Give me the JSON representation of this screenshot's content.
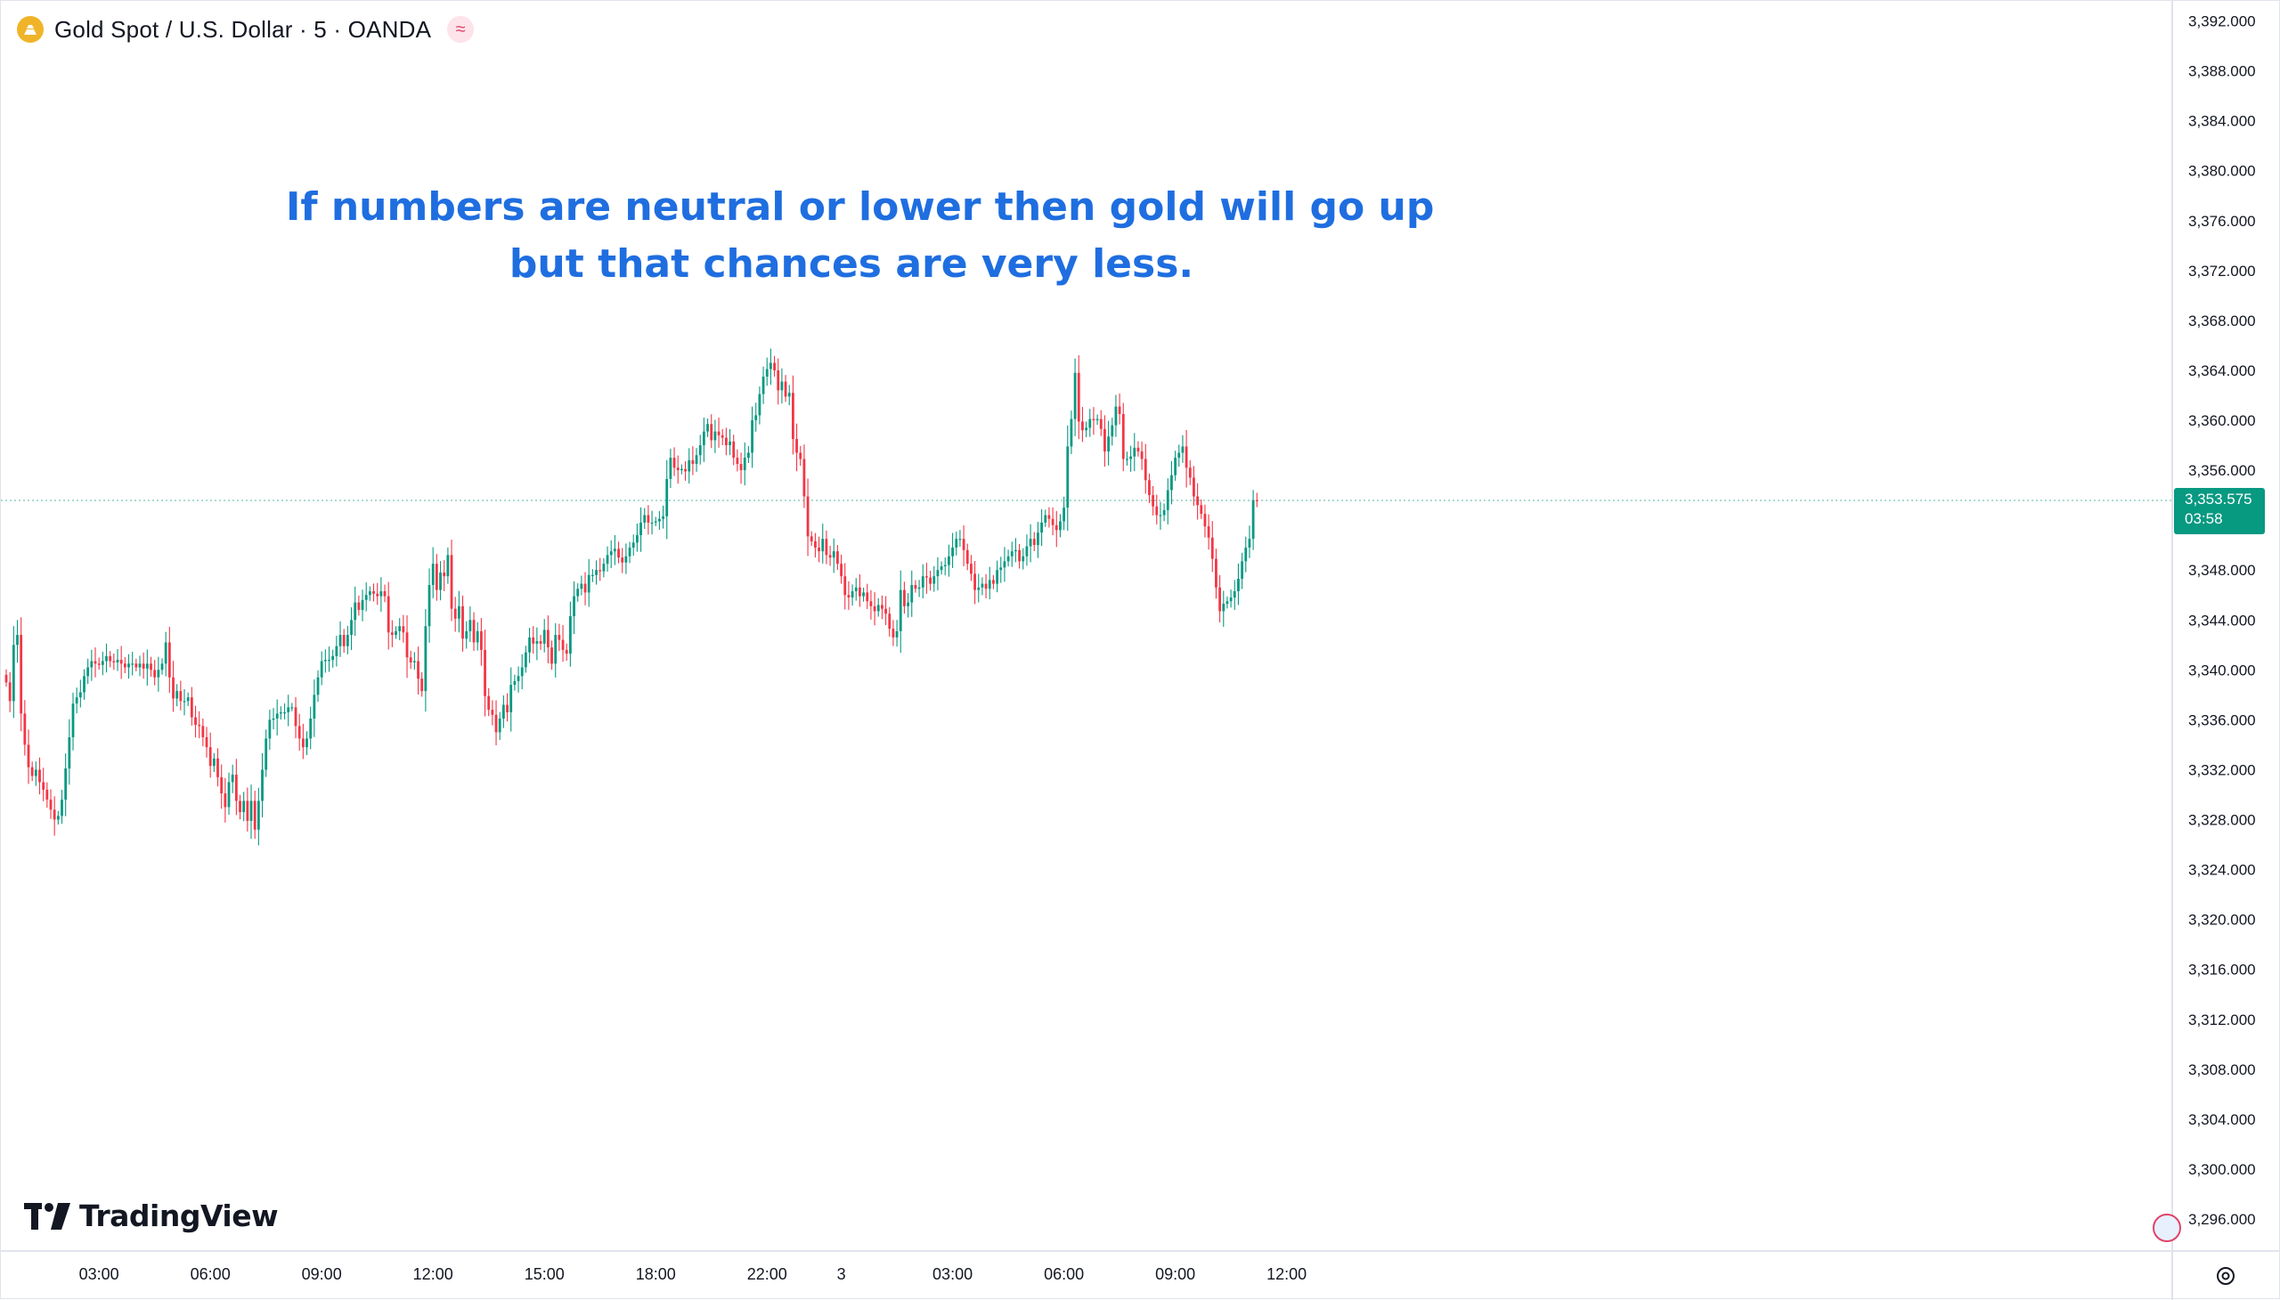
{
  "header": {
    "title": "Gold Spot / U.S. Dollar · 5 · OANDA",
    "symbol_icon": "gold-coin-icon",
    "indicator_icon": "approx-icon",
    "indicator_glyph": "≈"
  },
  "annotation": {
    "line1": "If numbers are neutral or lower then gold will go up",
    "line2": "but that chances are very less.",
    "color": "#1f6ee0"
  },
  "logo": {
    "text": "TradingView"
  },
  "price_label": {
    "price": "3,353.575",
    "countdown": "03:58",
    "color": "#089981"
  },
  "colors": {
    "up": "#089981",
    "down": "#f23645",
    "grid_line": "#e0e3eb",
    "price_line": "#089981"
  },
  "chart_data": {
    "type": "candlestick",
    "title": "Gold Spot / U.S. Dollar · 5 · OANDA",
    "interval": "5",
    "ylim": [
      3292,
      3394
    ],
    "y_ticks": [
      "3,392.000",
      "3,388.000",
      "3,384.000",
      "3,380.000",
      "3,376.000",
      "3,372.000",
      "3,368.000",
      "3,364.000",
      "3,360.000",
      "3,356.000",
      "3,352.000",
      "3,348.000",
      "3,344.000",
      "3,340.000",
      "3,336.000",
      "3,332.000",
      "3,328.000",
      "3,324.000",
      "3,320.000",
      "3,316.000",
      "3,312.000",
      "3,308.000",
      "3,304.000",
      "3,300.000",
      "3,296.000"
    ],
    "y_tick_values": [
      3392,
      3388,
      3384,
      3380,
      3376,
      3372,
      3368,
      3364,
      3360,
      3356,
      3352,
      3348,
      3344,
      3340,
      3336,
      3332,
      3328,
      3324,
      3320,
      3316,
      3312,
      3308,
      3304,
      3300,
      3296
    ],
    "x_ticks": [
      "03:00",
      "06:00",
      "09:00",
      "12:00",
      "15:00",
      "18:00",
      "22:00",
      "3",
      "03:00",
      "06:00",
      "09:00",
      "12:00"
    ],
    "x_tick_bar_index": [
      25,
      55,
      85,
      115,
      145,
      175,
      205,
      225,
      255,
      285,
      315,
      345
    ],
    "grid": false,
    "last_price": 3353.575,
    "closes": [
      3339.0,
      3337.5,
      3342.0,
      3342.8,
      3336.5,
      3334.0,
      3332.2,
      3331.5,
      3332.0,
      3331.0,
      3330.4,
      3329.6,
      3328.8,
      3328.0,
      3328.3,
      3329.6,
      3332.1,
      3334.6,
      3337.3,
      3337.8,
      3338.2,
      3339.5,
      3340.2,
      3340.7,
      3340.5,
      3340.4,
      3340.7,
      3341.1,
      3340.7,
      3340.6,
      3340.8,
      3340.5,
      3340.2,
      3340.5,
      3340.5,
      3340.2,
      3340.5,
      3340.1,
      3340.5,
      3340.0,
      3339.4,
      3340.0,
      3340.5,
      3342.2,
      3339.4,
      3337.7,
      3338.3,
      3337.5,
      3337.5,
      3337.8,
      3336.2,
      3335.6,
      3335.5,
      3334.6,
      3333.8,
      3332.3,
      3332.9,
      3331.4,
      3330.1,
      3329.0,
      3331.0,
      3331.6,
      3329.5,
      3328.6,
      3329.5,
      3327.9,
      3329.5,
      3327.2,
      3329.5,
      3332.0,
      3334.5,
      3336.0,
      3336.1,
      3336.5,
      3336.6,
      3336.6,
      3337.0,
      3337.0,
      3335.5,
      3334.5,
      3333.8,
      3334.5,
      3336.1,
      3338.0,
      3339.4,
      3340.7,
      3340.8,
      3340.8,
      3341.1,
      3341.9,
      3342.8,
      3341.9,
      3342.8,
      3344.0,
      3345.4,
      3344.8,
      3345.6,
      3346.0,
      3346.3,
      3346.1,
      3345.9,
      3346.3,
      3345.9,
      3343.0,
      3342.8,
      3343.1,
      3343.5,
      3343.0,
      3341.0,
      3340.6,
      3340.7,
      3339.3,
      3338.3,
      3343.5,
      3346.8,
      3348.5,
      3346.4,
      3347.8,
      3347.5,
      3349.2,
      3344.9,
      3344.1,
      3345.1,
      3342.5,
      3343.1,
      3344.0,
      3342.2,
      3343.1,
      3341.6,
      3337.9,
      3336.8,
      3336.4,
      3335.0,
      3336.1,
      3337.2,
      3336.6,
      3338.8,
      3339.1,
      3339.5,
      3340.2,
      3341.4,
      3342.6,
      3342.1,
      3342.3,
      3342.1,
      3343.2,
      3341.8,
      3340.5,
      3342.8,
      3342.4,
      3341.6,
      3341.3,
      3344.3,
      3345.9,
      3346.5,
      3346.9,
      3346.2,
      3347.6,
      3347.6,
      3348.0,
      3347.9,
      3348.5,
      3349.2,
      3349.5,
      3349.7,
      3349.0,
      3348.6,
      3349.1,
      3349.8,
      3350.2,
      3350.8,
      3351.8,
      3352.4,
      3351.8,
      3351.8,
      3351.9,
      3352.1,
      3352.3,
      3355.3,
      3357.0,
      3356.2,
      3356.0,
      3356.1,
      3355.9,
      3356.8,
      3356.5,
      3357.2,
      3358.0,
      3359.1,
      3359.7,
      3358.4,
      3359.1,
      3358.8,
      3358.6,
      3358.0,
      3358.3,
      3357.0,
      3356.5,
      3356.0,
      3357.0,
      3357.4,
      3360.0,
      3360.4,
      3362.1,
      3363.5,
      3364.1,
      3364.6,
      3364.0,
      3362.4,
      3363.1,
      3361.9,
      3362.2,
      3358.5,
      3357.4,
      3356.9,
      3353.9,
      3350.7,
      3350.3,
      3349.8,
      3349.5,
      3350.5,
      3349.2,
      3349.0,
      3349.5,
      3348.5,
      3347.5,
      3346.0,
      3345.8,
      3346.3,
      3346.6,
      3345.9,
      3346.2,
      3345.5,
      3345.1,
      3344.7,
      3345.2,
      3344.9,
      3344.5,
      3343.3,
      3342.6,
      3343.1,
      3346.4,
      3345.1,
      3345.4,
      3346.8,
      3346.5,
      3346.6,
      3347.5,
      3347.4,
      3346.9,
      3347.5,
      3348.0,
      3348.3,
      3348.4,
      3349.1,
      3349.8,
      3350.5,
      3350.5,
      3349.6,
      3348.5,
      3347.7,
      3346.4,
      3346.6,
      3346.9,
      3346.5,
      3347.2,
      3346.9,
      3348.0,
      3348.2,
      3348.7,
      3349.1,
      3349.5,
      3349.6,
      3348.7,
      3349.1,
      3349.9,
      3350.5,
      3350.0,
      3351.0,
      3351.8,
      3352.4,
      3352.1,
      3351.6,
      3351.2,
      3351.9,
      3353.0,
      3357.9,
      3360.1,
      3363.8,
      3359.9,
      3359.2,
      3359.4,
      3360.1,
      3360.0,
      3360.1,
      3359.3,
      3357.5,
      3358.7,
      3359.6,
      3361.1,
      3360.5,
      3356.9,
      3356.9,
      3357.1,
      3357.8,
      3357.5,
      3356.9,
      3355.2,
      3354.0,
      3353.1,
      3352.4,
      3352.4,
      3352.8,
      3354.4,
      3355.6,
      3357.0,
      3357.4,
      3357.9,
      3356.2,
      3355.4,
      3353.9,
      3353.2,
      3352.5,
      3351.5,
      3350.6,
      3348.9,
      3346.6,
      3344.7,
      3345.3,
      3345.5,
      3345.8,
      3346.3,
      3347.3,
      3348.7,
      3349.8,
      3350.5,
      3353.6,
      3353.575
    ]
  },
  "axis": {
    "settings_icon": "settings-gear-icon",
    "globe_icon": "globe-icon"
  }
}
